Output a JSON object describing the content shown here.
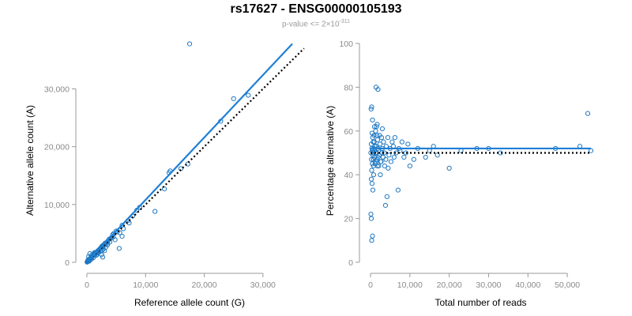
{
  "header": {
    "title": "rs17627 - ENSG00000105193",
    "pvalue_prefix": "p-value <= 2×10",
    "pvalue_exponent": "-311"
  },
  "colors": {
    "points": "#1f78c1",
    "fit": "#1f7fd6",
    "reference": "#000000",
    "axis": "#9a9a9a"
  },
  "chart_data": [
    {
      "type": "scatter",
      "xlabel": "Reference allele count (G)",
      "ylabel": "Alternative allele count (A)",
      "xlim": [
        0,
        35000
      ],
      "ylim": [
        0,
        38000
      ],
      "xticks": [
        0,
        10000,
        20000,
        30000
      ],
      "xtick_labels": [
        "0",
        "10,000",
        "20,000",
        "30,000"
      ],
      "yticks": [
        0,
        10000,
        20000,
        30000
      ],
      "ytick_labels": [
        "0",
        "10,000",
        "20,000",
        "30,000"
      ],
      "fit_line": {
        "x": [
          0,
          35000
        ],
        "y": [
          0,
          37800
        ]
      },
      "reference_line": {
        "x": [
          0,
          37000
        ],
        "y": [
          0,
          37000
        ]
      },
      "points": [
        [
          17500,
          37800
        ],
        [
          25000,
          28300
        ],
        [
          27500,
          28900
        ],
        [
          22800,
          24400
        ],
        [
          17200,
          17000
        ],
        [
          16000,
          16200
        ],
        [
          14000,
          15500
        ],
        [
          14200,
          15800
        ],
        [
          13200,
          12700
        ],
        [
          11600,
          8800
        ],
        [
          9000,
          9500
        ],
        [
          7800,
          8000
        ],
        [
          7200,
          6800
        ],
        [
          6000,
          6400
        ],
        [
          5600,
          5100
        ],
        [
          5000,
          5400
        ],
        [
          4600,
          5000
        ],
        [
          4400,
          4800
        ],
        [
          4200,
          4300
        ],
        [
          4000,
          4100
        ],
        [
          3800,
          4000
        ],
        [
          3600,
          3700
        ],
        [
          3500,
          3300
        ],
        [
          3300,
          3400
        ],
        [
          3100,
          3300
        ],
        [
          3000,
          3100
        ],
        [
          2900,
          3000
        ],
        [
          2800,
          2800
        ],
        [
          2700,
          2900
        ],
        [
          2600,
          2600
        ],
        [
          2500,
          2700
        ],
        [
          2400,
          2500
        ],
        [
          2300,
          2400
        ],
        [
          2200,
          2300
        ],
        [
          2100,
          2200
        ],
        [
          2000,
          2100
        ],
        [
          1950,
          1900
        ],
        [
          1900,
          2000
        ],
        [
          1800,
          1900
        ],
        [
          1700,
          1800
        ],
        [
          1600,
          1700
        ],
        [
          1500,
          1600
        ],
        [
          1450,
          1400
        ],
        [
          1400,
          1500
        ],
        [
          1300,
          1400
        ],
        [
          1200,
          1300
        ],
        [
          1100,
          1200
        ],
        [
          1000,
          1100
        ],
        [
          900,
          1000
        ],
        [
          800,
          900
        ],
        [
          700,
          800
        ],
        [
          600,
          700
        ],
        [
          500,
          600
        ],
        [
          400,
          500
        ],
        [
          300,
          300
        ],
        [
          200,
          250
        ],
        [
          150,
          180
        ],
        [
          100,
          120
        ],
        [
          60,
          70
        ],
        [
          30,
          30
        ],
        [
          500,
          1500
        ],
        [
          300,
          1000
        ],
        [
          900,
          1300
        ],
        [
          1200,
          1500
        ],
        [
          2500,
          1300
        ],
        [
          2700,
          900
        ],
        [
          3200,
          2600
        ],
        [
          5500,
          2400
        ],
        [
          6000,
          4500
        ],
        [
          8500,
          9000
        ],
        [
          3500,
          3000
        ],
        [
          1700,
          1300
        ],
        [
          2300,
          1900
        ],
        [
          4800,
          3900
        ],
        [
          700,
          500
        ],
        [
          1100,
          800
        ],
        [
          1600,
          1200
        ],
        [
          2600,
          2100
        ],
        [
          3900,
          3500
        ],
        [
          4500,
          4400
        ],
        [
          5200,
          5300
        ],
        [
          200,
          400
        ],
        [
          400,
          200
        ],
        [
          800,
          600
        ],
        [
          1300,
          1700
        ],
        [
          2000,
          1700
        ],
        [
          2800,
          2300
        ],
        [
          6200,
          5800
        ],
        [
          7000,
          7200
        ],
        [
          3000,
          2000
        ]
      ]
    },
    {
      "type": "scatter",
      "xlabel": "Total number of reads",
      "ylabel": "Percentage alternative (A)",
      "xlim": [
        0,
        56000
      ],
      "ylim": [
        0,
        100
      ],
      "xticks": [
        0,
        10000,
        20000,
        30000,
        40000,
        50000
      ],
      "xtick_labels": [
        "0",
        "10,000",
        "20,000",
        "30,000",
        "40,000",
        "50,000"
      ],
      "yticks": [
        0,
        20,
        40,
        60,
        80,
        100
      ],
      "ytick_labels": [
        "0",
        "20",
        "40",
        "60",
        "80",
        "100"
      ],
      "fit_line": {
        "x": [
          0,
          56000
        ],
        "y": [
          52,
          52
        ]
      },
      "reference_line": {
        "x": [
          0,
          56000
        ],
        "y": [
          50,
          50
        ]
      },
      "points": [
        [
          55200,
          68
        ],
        [
          53200,
          53
        ],
        [
          56000,
          51
        ],
        [
          47000,
          52
        ],
        [
          33000,
          50
        ],
        [
          30000,
          52
        ],
        [
          27000,
          52
        ],
        [
          23000,
          51
        ],
        [
          20000,
          43
        ],
        [
          17000,
          49
        ],
        [
          16000,
          53
        ],
        [
          15000,
          51
        ],
        [
          14000,
          48
        ],
        [
          12000,
          52
        ],
        [
          11000,
          47
        ],
        [
          10000,
          44
        ],
        [
          9000,
          50
        ],
        [
          8000,
          55
        ],
        [
          7500,
          51
        ],
        [
          7000,
          33
        ],
        [
          6500,
          50
        ],
        [
          6000,
          48
        ],
        [
          5500,
          55
        ],
        [
          5000,
          52
        ],
        [
          4700,
          49
        ],
        [
          4500,
          43
        ],
        [
          4200,
          30
        ],
        [
          4000,
          53
        ],
        [
          3800,
          26
        ],
        [
          3500,
          50
        ],
        [
          3200,
          48
        ],
        [
          3000,
          52
        ],
        [
          2800,
          57
        ],
        [
          2600,
          46
        ],
        [
          2400,
          54
        ],
        [
          2200,
          49
        ],
        [
          2000,
          51
        ],
        [
          1800,
          56
        ],
        [
          1600,
          47
        ],
        [
          1500,
          62
        ],
        [
          1400,
          80
        ],
        [
          1300,
          60
        ],
        [
          1200,
          45
        ],
        [
          1100,
          53
        ],
        [
          1000,
          48
        ],
        [
          900,
          58
        ],
        [
          800,
          44
        ],
        [
          700,
          55
        ],
        [
          600,
          49
        ],
        [
          500,
          51
        ],
        [
          400,
          59
        ],
        [
          300,
          42
        ],
        [
          200,
          54
        ],
        [
          100,
          50
        ],
        [
          150,
          70
        ],
        [
          300,
          71
        ],
        [
          500,
          65
        ],
        [
          200,
          38
        ],
        [
          400,
          36
        ],
        [
          600,
          33
        ],
        [
          100,
          22
        ],
        [
          200,
          20
        ],
        [
          500,
          12
        ],
        [
          300,
          10
        ],
        [
          1900,
          79
        ],
        [
          2500,
          40
        ],
        [
          3000,
          61
        ],
        [
          1700,
          63
        ],
        [
          800,
          40
        ],
        [
          1000,
          62
        ],
        [
          2100,
          44
        ],
        [
          2700,
          46
        ],
        [
          3300,
          55
        ],
        [
          3900,
          47
        ],
        [
          4400,
          57
        ],
        [
          5200,
          46
        ],
        [
          5800,
          53
        ],
        [
          6200,
          57
        ],
        [
          7200,
          52
        ],
        [
          8500,
          48
        ],
        [
          9500,
          54
        ],
        [
          250,
          47
        ],
        [
          350,
          52
        ],
        [
          450,
          45
        ],
        [
          550,
          57
        ],
        [
          650,
          50
        ],
        [
          750,
          47
        ],
        [
          850,
          52
        ],
        [
          950,
          55
        ],
        [
          1250,
          50
        ],
        [
          1350,
          46
        ],
        [
          1450,
          53
        ],
        [
          1550,
          50
        ],
        [
          1650,
          58
        ],
        [
          1750,
          44
        ],
        [
          1850,
          52
        ],
        [
          1950,
          48
        ],
        [
          2300,
          58
        ],
        [
          2900,
          50
        ],
        [
          3600,
          44
        ]
      ]
    }
  ]
}
